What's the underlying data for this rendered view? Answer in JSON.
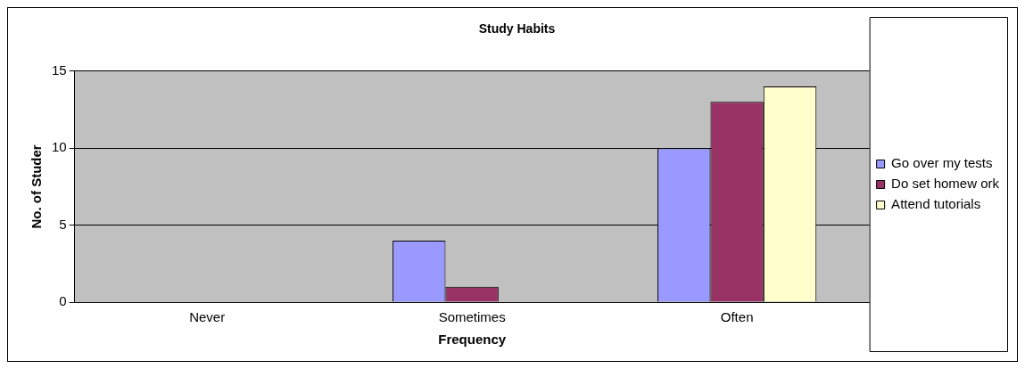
{
  "chart_data": {
    "type": "bar",
    "title": "Study Habits",
    "xlabel": "Frequency",
    "ylabel": "No. of Studer",
    "categories": [
      "Never",
      "Sometimes",
      "Often"
    ],
    "series": [
      {
        "name": "Go over my tests",
        "color": "#9999ff",
        "values": [
          0,
          4,
          10
        ]
      },
      {
        "name": "Do set homew ork",
        "color": "#993366",
        "values": [
          0,
          1,
          13
        ]
      },
      {
        "name": "Attend tutorials",
        "color": "#ffffcc",
        "values": [
          0,
          0,
          14
        ]
      }
    ],
    "ylim": [
      0,
      15
    ],
    "yticks": [
      0,
      5,
      10,
      15
    ],
    "grid": "y",
    "legend": "right"
  }
}
